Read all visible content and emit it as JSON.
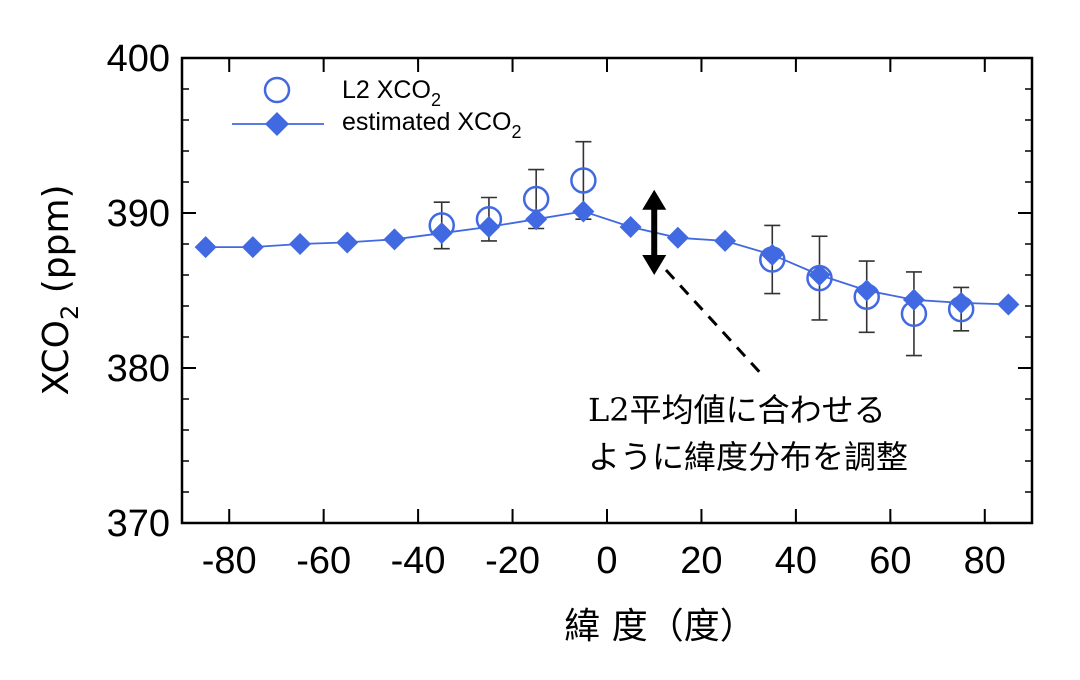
{
  "chart_data": {
    "type": "line",
    "xlabel": "緯 度（度）",
    "ylabel_main": "XCO",
    "ylabel_sub": "2",
    "ylabel_unit": " (ppm)",
    "xlim": [
      -90,
      90
    ],
    "ylim": [
      370,
      400
    ],
    "xticks": [
      -80,
      -60,
      -40,
      -20,
      0,
      20,
      40,
      60,
      80
    ],
    "yticks": [
      370,
      380,
      390,
      400
    ],
    "grid": false,
    "legend_position": "top-left",
    "colors": {
      "series": "#4169e1",
      "errorbar": "#333333",
      "arrow": "#000000"
    },
    "series": [
      {
        "name_main": "L2 XCO",
        "name_sub": "2",
        "marker": "open-circle",
        "points": [
          {
            "x": -35,
            "y": 389.2,
            "err": 1.5
          },
          {
            "x": -25,
            "y": 389.6,
            "err": 1.4
          },
          {
            "x": -15,
            "y": 390.9,
            "err": 1.9
          },
          {
            "x": -5,
            "y": 392.1,
            "err": 2.5
          },
          {
            "x": 35,
            "y": 387.0,
            "err": 2.2
          },
          {
            "x": 45,
            "y": 385.8,
            "err": 2.7
          },
          {
            "x": 55,
            "y": 384.6,
            "err": 2.3
          },
          {
            "x": 65,
            "y": 383.5,
            "err": 2.7
          },
          {
            "x": 75,
            "y": 383.8,
            "err": 1.4
          }
        ]
      },
      {
        "name_main": "estimated XCO",
        "name_sub": "2",
        "marker": "filled-diamond-line",
        "points": [
          {
            "x": -85,
            "y": 387.8
          },
          {
            "x": -75,
            "y": 387.8
          },
          {
            "x": -65,
            "y": 388.0
          },
          {
            "x": -55,
            "y": 388.1
          },
          {
            "x": -45,
            "y": 388.3
          },
          {
            "x": -35,
            "y": 388.7
          },
          {
            "x": -25,
            "y": 389.1
          },
          {
            "x": -15,
            "y": 389.6
          },
          {
            "x": -5,
            "y": 390.1
          },
          {
            "x": 5,
            "y": 389.1
          },
          {
            "x": 15,
            "y": 388.4
          },
          {
            "x": 25,
            "y": 388.2
          },
          {
            "x": 35,
            "y": 387.3
          },
          {
            "x": 45,
            "y": 386.0
          },
          {
            "x": 55,
            "y": 385.0
          },
          {
            "x": 65,
            "y": 384.4
          },
          {
            "x": 75,
            "y": 384.2
          },
          {
            "x": 85,
            "y": 384.1
          }
        ]
      }
    ],
    "annotations": {
      "lines": [
        "L2平均値に合わせる",
        "ように緯度分布を調整"
      ],
      "arrow": {
        "x": 10,
        "y_top": 391.5,
        "y_bottom": 386.0
      }
    }
  }
}
